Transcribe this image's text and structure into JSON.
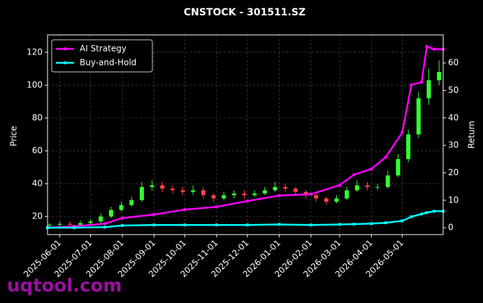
{
  "chart_data": {
    "type": "candlestick",
    "title": "CNSTOCK - 301511.SZ",
    "y_label": "Price",
    "y2_label": "Return",
    "watermark": "uqtool.com",
    "dates": [
      "2025-05-22",
      "2025-06-01",
      "2025-06-11",
      "2025-06-21",
      "2025-07-01",
      "2025-07-11",
      "2025-07-21",
      "2025-07-31",
      "2025-08-10",
      "2025-08-20",
      "2025-08-30",
      "2025-09-09",
      "2025-09-19",
      "2025-09-29",
      "2025-10-09",
      "2025-10-19",
      "2025-10-29",
      "2025-11-08",
      "2025-11-18",
      "2025-11-28",
      "2025-12-08",
      "2025-12-18",
      "2025-12-28",
      "2026-01-07",
      "2026-01-17",
      "2026-01-27",
      "2026-02-06",
      "2026-02-16",
      "2026-02-26",
      "2026-03-08",
      "2026-03-18",
      "2026-03-28",
      "2026-04-07",
      "2026-04-17",
      "2026-04-27",
      "2026-05-07",
      "2026-05-17",
      "2026-05-27",
      "2026-06-06"
    ],
    "open": [
      14.5,
      15,
      15.5,
      15,
      16,
      17,
      20,
      24,
      27,
      30,
      38,
      39,
      37,
      36,
      35,
      36,
      33,
      31,
      33,
      34,
      33,
      34,
      36,
      38,
      37,
      35,
      33,
      31,
      29,
      31,
      36,
      39,
      38,
      38,
      45,
      55,
      70,
      92,
      103
    ],
    "high": [
      16,
      17,
      17,
      17.5,
      18.5,
      22,
      26,
      29,
      32,
      41,
      42,
      41,
      39,
      38,
      39,
      38,
      34,
      35,
      36,
      36,
      36,
      38,
      41,
      40,
      38,
      36,
      34,
      32,
      33,
      38,
      42,
      41,
      40,
      48,
      58,
      73,
      96,
      110,
      115
    ],
    "low": [
      13.5,
      14,
      14,
      14,
      15,
      16,
      19,
      23,
      26,
      29,
      36,
      35,
      34,
      33,
      33,
      31,
      29,
      30,
      31,
      31,
      32,
      33,
      35,
      35,
      33,
      31,
      29,
      27,
      28,
      30,
      35,
      36,
      36,
      37,
      44,
      53,
      68,
      88,
      100
    ],
    "close": [
      15,
      15.5,
      15,
      16,
      17,
      20,
      24,
      27,
      30,
      38,
      39,
      37,
      36,
      35,
      36,
      33,
      31,
      33,
      34,
      33,
      34,
      36,
      38,
      37,
      35,
      33,
      31,
      29,
      31,
      36,
      39,
      38,
      38,
      45,
      55,
      70,
      92,
      103,
      108
    ],
    "up_color": "#33ff33",
    "down_color": "#ff4444",
    "x": [
      "2025-05-20",
      "2025-06-15",
      "2025-07-15",
      "2025-08-01",
      "2025-09-01",
      "2025-10-01",
      "2025-11-01",
      "2025-12-01",
      "2026-01-01",
      "2026-02-01",
      "2026-03-01",
      "2026-03-15",
      "2026-04-01",
      "2026-04-15",
      "2026-05-01",
      "2026-05-10",
      "2026-05-20",
      "2026-05-25",
      "2026-06-01",
      "2026-06-10"
    ],
    "series": [
      {
        "name": "AI Strategy",
        "color": "#ff00ff",
        "axis": "y2",
        "values": [
          0,
          0.5,
          1.5,
          3.5,
          4.8,
          6.6,
          7.6,
          9.7,
          11.7,
          12.2,
          15.5,
          19.3,
          21.4,
          25.7,
          34.6,
          52,
          53,
          66,
          65,
          65
        ]
      },
      {
        "name": "Buy-and-Hold",
        "color": "#00ffff",
        "axis": "y2",
        "values": [
          0,
          0,
          0.2,
          0.8,
          1,
          1,
          1,
          1,
          1.2,
          1,
          1.2,
          1.3,
          1.5,
          1.8,
          2.5,
          4,
          5,
          5.5,
          6,
          6
        ]
      }
    ],
    "xlim": [
      "2025-05-20",
      "2026-06-10"
    ],
    "xticks": [
      "2025-06-01",
      "2025-07-01",
      "2025-08-01",
      "2025-09-01",
      "2025-10-01",
      "2025-11-01",
      "2025-12-01",
      "2026-01-01",
      "2026-02-01",
      "2026-03-01",
      "2026-04-01",
      "2026-05-01"
    ],
    "ylim": [
      9,
      130.6
    ],
    "yticks": [
      20,
      40,
      60,
      80,
      100,
      120
    ],
    "y2lim": [
      -2.5,
      70.2
    ],
    "y2ticks": [
      0,
      10,
      20,
      30,
      40,
      50,
      60
    ],
    "grid": true,
    "legend": "upper left"
  }
}
